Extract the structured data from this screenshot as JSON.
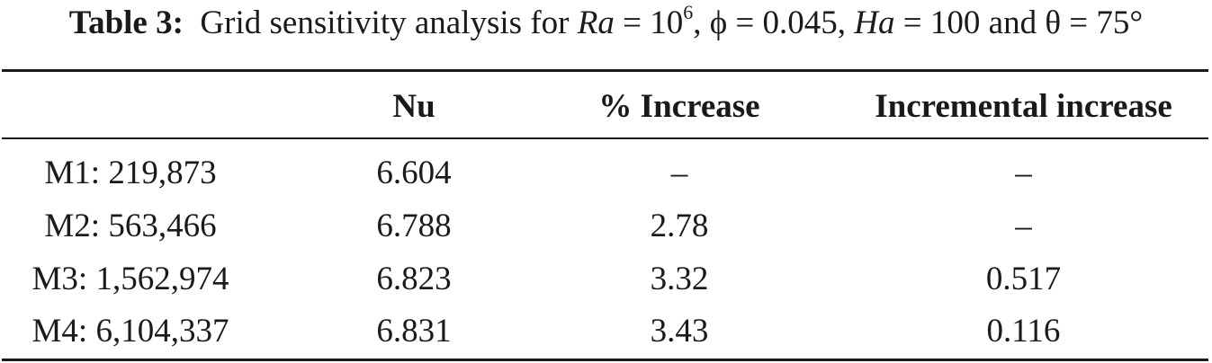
{
  "caption": {
    "label": "Table 3:",
    "text_pre": "Grid sensitivity analysis for ",
    "ra_symbol": "Ra",
    "ra_eq": " = 10",
    "ra_exp": "6",
    "phi_part": ", ϕ = 0.045, ",
    "ha_symbol": "Ha",
    "ha_part": " = 100 and θ = 75°"
  },
  "table": {
    "headers": [
      "",
      "Nu",
      "% Increase",
      "Incremental increase"
    ],
    "rows": [
      [
        "M1: 219,873",
        "6.604",
        "–",
        "–"
      ],
      [
        "M2: 563,466",
        "6.788",
        "2.78",
        "–"
      ],
      [
        "M3: 1,562,974",
        "6.823",
        "3.32",
        "0.517"
      ],
      [
        "M4: 6,104,337",
        "6.831",
        "3.43",
        "0.116"
      ]
    ]
  }
}
